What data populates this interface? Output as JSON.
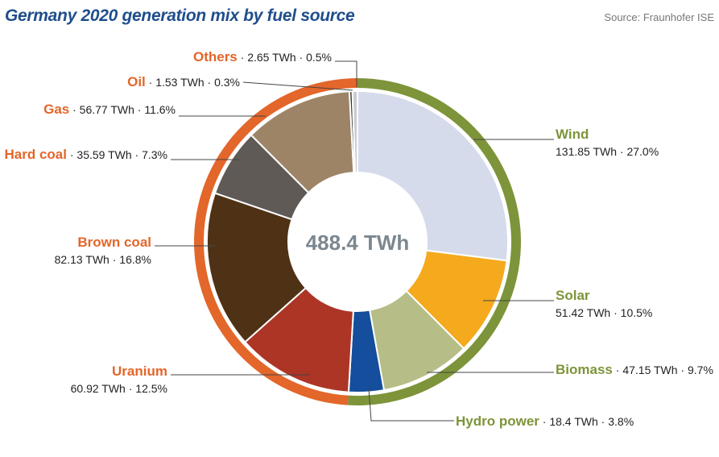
{
  "header": {
    "title": "Germany 2020 generation mix by fuel source",
    "source": "Source: Fraunhofer ISE"
  },
  "chart_data": {
    "type": "pie",
    "title": "Germany 2020 generation mix by fuel source",
    "total_label": "488.4 TWh",
    "unit": "TWh",
    "slices": [
      {
        "name": "Wind",
        "value": 131.85,
        "percent": "27.0%",
        "value_text": "131.85 TWh",
        "color": "#d5dbeb",
        "group": "renewable"
      },
      {
        "name": "Solar",
        "value": 51.42,
        "percent": "10.5%",
        "value_text": "51.42 TWh",
        "color": "#f5a91c",
        "group": "renewable"
      },
      {
        "name": "Biomass",
        "value": 47.15,
        "percent": "9.7%",
        "value_text": "47.15 TWh",
        "color": "#b6bd86",
        "group": "renewable"
      },
      {
        "name": "Hydro power",
        "value": 18.4,
        "percent": "3.8%",
        "value_text": "18.4 TWh",
        "color": "#144e9c",
        "group": "renewable"
      },
      {
        "name": "Uranium",
        "value": 60.92,
        "percent": "12.5%",
        "value_text": "60.92 TWh",
        "color": "#ad3526",
        "group": "conventional"
      },
      {
        "name": "Brown coal",
        "value": 82.13,
        "percent": "16.8%",
        "value_text": "82.13 TWh",
        "color": "#4f3215",
        "group": "conventional"
      },
      {
        "name": "Hard coal",
        "value": 35.59,
        "percent": "7.3%",
        "value_text": "35.59 TWh",
        "color": "#5f5a56",
        "group": "conventional"
      },
      {
        "name": "Gas",
        "value": 56.77,
        "percent": "11.6%",
        "value_text": "56.77 TWh",
        "color": "#9e8467",
        "group": "conventional"
      },
      {
        "name": "Oil",
        "value": 1.53,
        "percent": "0.3%",
        "value_text": "1.53 TWh",
        "color": "#3a3a3a",
        "group": "conventional"
      },
      {
        "name": "Others",
        "value": 2.65,
        "percent": "0.5%",
        "value_text": "2.65 TWh",
        "color": "#c9ccd2",
        "group": "conventional"
      }
    ],
    "groups": {
      "renewable": {
        "color": "#7d943a"
      },
      "conventional": {
        "color": "#e3662a"
      }
    }
  }
}
